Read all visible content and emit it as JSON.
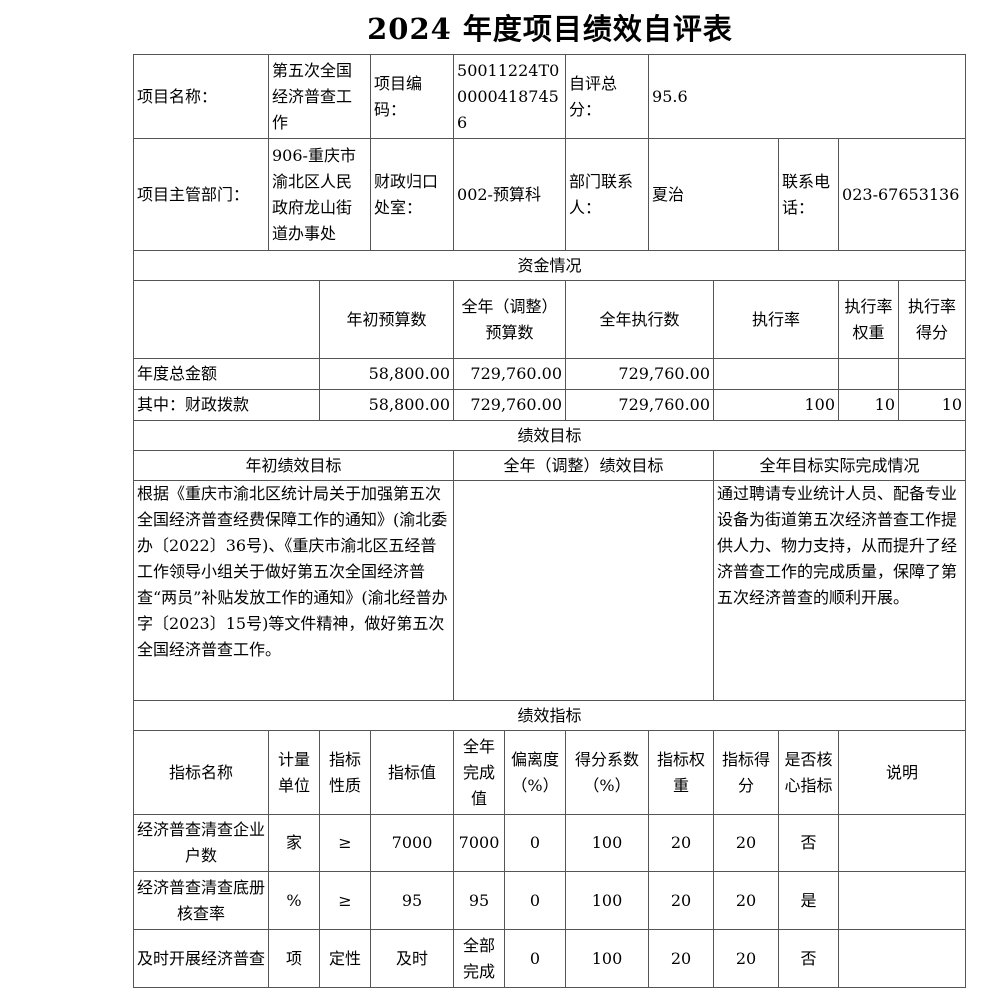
{
  "title": "2024 年度项目绩效自评表",
  "info": {
    "name_label": "项目名称：",
    "name": "第五次全国经济普查工作",
    "code_label": "项目编码：",
    "code": "50011224T000004187456",
    "score_label": "自评总分：",
    "score": "95.6",
    "dept_label": "项目主管部门：",
    "dept": "906-重庆市渝北区人民政府龙山街道办事处",
    "finance_label": "财政归口处室：",
    "finance": "002-预算科",
    "contact_label": "部门联系人：",
    "contact": "夏治",
    "phone_label": "联系电话：",
    "phone": "023-67653136"
  },
  "funds": {
    "section": "资金情况",
    "headers": [
      "年初预算数",
      "全年（调整）预算数",
      "全年执行数",
      "执行率",
      "执行率权重",
      "执行率得分"
    ],
    "rows": [
      {
        "label": "年度总金额",
        "values": [
          "58,800.00",
          "729,760.00",
          "729,760.00",
          "",
          "",
          ""
        ]
      },
      {
        "label": "其中：财政拨款",
        "values": [
          "58,800.00",
          "729,760.00",
          "729,760.00",
          "100",
          "10",
          "10"
        ]
      }
    ]
  },
  "goals": {
    "section": "绩效目标",
    "headers": [
      "年初绩效目标",
      "全年（调整）绩效目标",
      "全年目标实际完成情况"
    ],
    "initial": "根据《重庆市渝北区统计局关于加强第五次全国经济普查经费保障工作的通知》(渝北委办〔2022〕36号)、《重庆市渝北区五经普工作领导小组关于做好第五次全国经济普查“两员”补贴发放工作的通知》(渝北经普办字〔2023〕15号)等文件精神，做好第五次全国经济普查工作。",
    "adjusted": "",
    "actual": "通过聘请专业统计人员、配备专业设备为街道第五次经济普查工作提供人力、物力支持，从而提升了经济普查工作的完成质量，保障了第五次经济普查的顺利开展。"
  },
  "indicators": {
    "section": "绩效指标",
    "headers": [
      "指标名称",
      "计量单位",
      "指标性质",
      "指标值",
      "全年完成值",
      "偏离度（%）",
      "得分系数（%）",
      "指标权重",
      "指标得分",
      "是否核心指标",
      "说明"
    ],
    "rows": [
      [
        "经济普查清查企业户数",
        "家",
        "≥",
        "7000",
        "7000",
        "0",
        "100",
        "20",
        "20",
        "否",
        ""
      ],
      [
        "经济普查清查底册核查率",
        "%",
        "≥",
        "95",
        "95",
        "0",
        "100",
        "20",
        "20",
        "是",
        ""
      ],
      [
        "及时开展经济普查",
        "项",
        "定性",
        "及时",
        "全部完成",
        "0",
        "100",
        "20",
        "20",
        "否",
        ""
      ]
    ]
  }
}
